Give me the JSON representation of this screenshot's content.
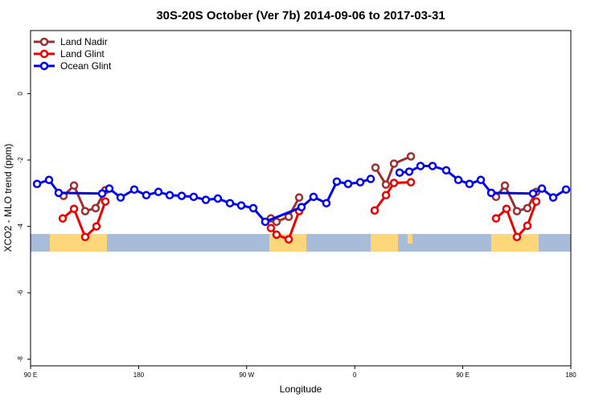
{
  "chart_data": {
    "type": "line",
    "title": "30S-20S October (Ver 7b)   2014-09-06 to 2017-03-31",
    "x_label": "Longitude",
    "y_label": "XCO2 - MLO trend (ppm)",
    "xlim": [
      90,
      540
    ],
    "xticks": [
      {
        "value": 90,
        "label": "90 E"
      },
      {
        "value": 180,
        "label": "180"
      },
      {
        "value": 270,
        "label": "90 W"
      },
      {
        "value": 360,
        "label": "0"
      },
      {
        "value": 450,
        "label": "90 E"
      },
      {
        "value": 540,
        "label": "180"
      }
    ],
    "ylim": [
      -8.2,
      1.9
    ],
    "yticks": [
      0,
      -2,
      -4,
      -6,
      -8
    ],
    "legend": "top-left",
    "series": [
      {
        "name": "Land Nadir",
        "color": "#9b3030",
        "x": [
          117.5,
          126.2,
          135.5,
          144.2,
          152.3,
          null,
          290.2,
          294.9,
          305,
          313.7,
          null,
          377.3,
          386,
          392.7,
          406.8,
          null,
          477.7,
          485.1,
          495.1,
          503.8,
          511.2
        ],
        "values": [
          -3.08,
          -2.77,
          -3.54,
          -3.45,
          -2.91,
          null,
          -3.76,
          -3.86,
          -3.71,
          -3.13,
          null,
          -2.23,
          -2.74,
          -2.11,
          -1.89,
          null,
          -3.11,
          -2.77,
          -3.54,
          -3.45,
          -2.96
        ]
      },
      {
        "name": "Land Glint",
        "color": "#ee0000",
        "x": [
          116.8,
          126.2,
          135.5,
          144.9,
          152.3,
          null,
          290.2,
          294.9,
          305,
          313.7,
          null,
          376.6,
          386,
          392.7,
          406.8,
          null,
          477.7,
          486.4,
          495.1,
          503.8,
          511.2
        ],
        "values": [
          -3.76,
          -3.47,
          -4.32,
          -4.0,
          -3.25,
          null,
          -4.05,
          -4.25,
          -4.39,
          -3.54,
          null,
          -3.52,
          -3.06,
          -2.69,
          -2.67,
          null,
          -3.76,
          -3.47,
          -4.32,
          -3.98,
          -3.25
        ]
      },
      {
        "name": "Ocean Glint",
        "color": "#0000ee",
        "x": [
          95.4,
          105.4,
          113.4,
          149.6,
          155.6,
          165,
          176.4,
          186.4,
          196.5,
          205.9,
          215.9,
          225.9,
          236,
          246,
          256.1,
          265.5,
          275.5,
          285.5,
          315.7,
          325.7,
          336.4,
          345.1,
          354.5,
          364.6,
          373.3,
          null,
          397.4,
          405.4,
          414.8,
          424.8,
          436.2,
          446.3,
          455.6,
          465,
          473.7,
          508.5,
          515.9,
          525.3,
          536
        ],
        "values": [
          -2.72,
          -2.6,
          -2.99,
          -3.01,
          -2.86,
          -3.13,
          -2.89,
          -3.06,
          -2.96,
          -3.06,
          -3.08,
          -3.11,
          -3.2,
          -3.16,
          -3.3,
          -3.37,
          -3.45,
          -3.86,
          -3.42,
          -3.11,
          -3.3,
          -2.65,
          -2.72,
          -2.67,
          -2.57,
          null,
          -2.38,
          -2.35,
          -2.18,
          -2.18,
          -2.31,
          -2.6,
          -2.72,
          -2.6,
          -2.99,
          -3.01,
          -2.86,
          -3.13,
          -2.89
        ]
      }
    ]
  }
}
